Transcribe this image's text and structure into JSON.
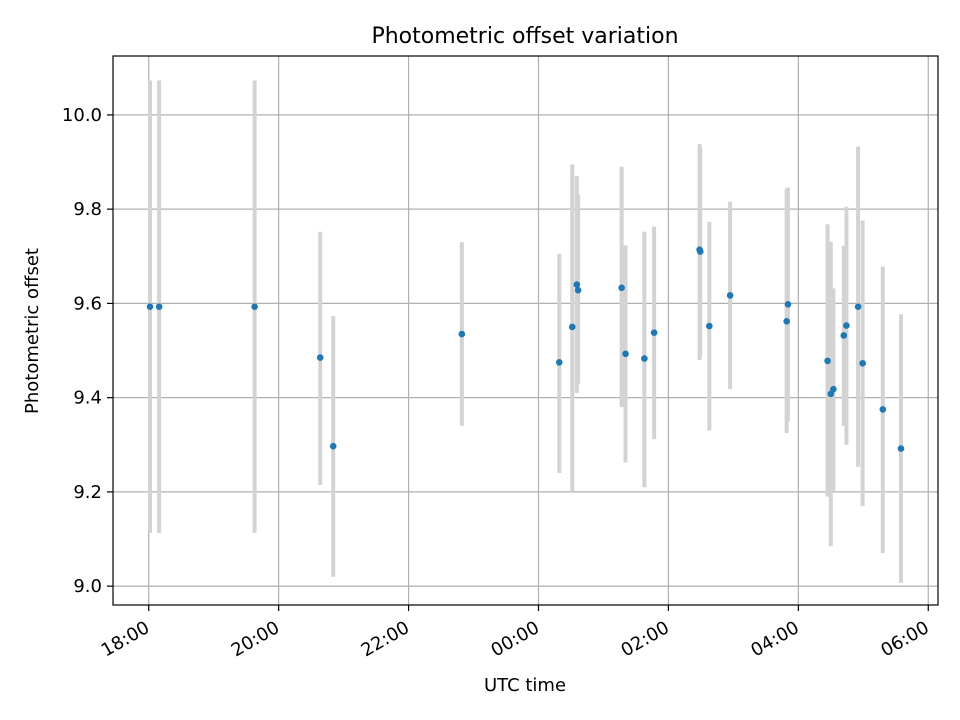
{
  "chart_data": {
    "type": "scatter",
    "title": "Photometric offset variation",
    "xlabel": "UTC time",
    "ylabel": "Photometric offset",
    "x_unit": "hours since 18:00 UTC",
    "xlim": [
      -0.55,
      12.15
    ],
    "ylim": [
      8.96,
      10.125
    ],
    "xticks": [
      {
        "value": 0,
        "label": "18:00"
      },
      {
        "value": 2,
        "label": "20:00"
      },
      {
        "value": 4,
        "label": "22:00"
      },
      {
        "value": 6,
        "label": "00:00"
      },
      {
        "value": 8,
        "label": "02:00"
      },
      {
        "value": 10,
        "label": "04:00"
      },
      {
        "value": 12,
        "label": "06:00"
      }
    ],
    "yticks": [
      {
        "value": 9.0,
        "label": "9.0"
      },
      {
        "value": 9.2,
        "label": "9.2"
      },
      {
        "value": 9.4,
        "label": "9.4"
      },
      {
        "value": 9.6,
        "label": "9.6"
      },
      {
        "value": 9.8,
        "label": "9.8"
      },
      {
        "value": 10.0,
        "label": "10.0"
      }
    ],
    "grid": true,
    "colors": {
      "points": "#1f77b4",
      "errorbars": "#d3d3d3",
      "grid": "#b0b0b0"
    },
    "points": [
      {
        "x": 0.02,
        "y": 9.593,
        "ylo": 9.113,
        "yhi": 10.073
      },
      {
        "x": 0.16,
        "y": 9.593,
        "ylo": 9.113,
        "yhi": 10.073
      },
      {
        "x": 1.63,
        "y": 9.593,
        "ylo": 9.113,
        "yhi": 10.073
      },
      {
        "x": 2.64,
        "y": 9.485,
        "ylo": 9.215,
        "yhi": 9.752
      },
      {
        "x": 2.84,
        "y": 9.297,
        "ylo": 9.02,
        "yhi": 9.573
      },
      {
        "x": 4.82,
        "y": 9.535,
        "ylo": 9.34,
        "yhi": 9.73
      },
      {
        "x": 6.32,
        "y": 9.475,
        "ylo": 9.24,
        "yhi": 9.705
      },
      {
        "x": 6.52,
        "y": 9.55,
        "ylo": 9.2,
        "yhi": 9.895
      },
      {
        "x": 6.59,
        "y": 9.64,
        "ylo": 9.41,
        "yhi": 9.87
      },
      {
        "x": 6.61,
        "y": 9.628,
        "ylo": 9.43,
        "yhi": 9.83
      },
      {
        "x": 7.28,
        "y": 9.633,
        "ylo": 9.38,
        "yhi": 9.89
      },
      {
        "x": 7.34,
        "y": 9.493,
        "ylo": 9.262,
        "yhi": 9.723
      },
      {
        "x": 7.63,
        "y": 9.483,
        "ylo": 9.21,
        "yhi": 9.752
      },
      {
        "x": 7.78,
        "y": 9.538,
        "ylo": 9.312,
        "yhi": 9.763
      },
      {
        "x": 8.48,
        "y": 9.714,
        "ylo": 9.48,
        "yhi": 9.938
      },
      {
        "x": 8.49,
        "y": 9.71,
        "ylo": 9.49,
        "yhi": 9.93
      },
      {
        "x": 8.63,
        "y": 9.552,
        "ylo": 9.33,
        "yhi": 9.773
      },
      {
        "x": 8.95,
        "y": 9.617,
        "ylo": 9.418,
        "yhi": 9.816
      },
      {
        "x": 9.82,
        "y": 9.562,
        "ylo": 9.325,
        "yhi": 9.843
      },
      {
        "x": 9.84,
        "y": 9.598,
        "ylo": 9.35,
        "yhi": 9.846
      },
      {
        "x": 10.45,
        "y": 9.478,
        "ylo": 9.19,
        "yhi": 9.768
      },
      {
        "x": 10.5,
        "y": 9.408,
        "ylo": 9.085,
        "yhi": 9.731
      },
      {
        "x": 10.54,
        "y": 9.418,
        "ylo": 9.203,
        "yhi": 9.632
      },
      {
        "x": 10.7,
        "y": 9.532,
        "ylo": 9.34,
        "yhi": 9.722
      },
      {
        "x": 10.74,
        "y": 9.553,
        "ylo": 9.3,
        "yhi": 9.805
      },
      {
        "x": 10.92,
        "y": 9.593,
        "ylo": 9.253,
        "yhi": 9.933
      },
      {
        "x": 10.99,
        "y": 9.473,
        "ylo": 9.17,
        "yhi": 9.776
      },
      {
        "x": 11.3,
        "y": 9.375,
        "ylo": 9.07,
        "yhi": 9.678
      },
      {
        "x": 11.58,
        "y": 9.292,
        "ylo": 9.007,
        "yhi": 9.577
      }
    ]
  }
}
